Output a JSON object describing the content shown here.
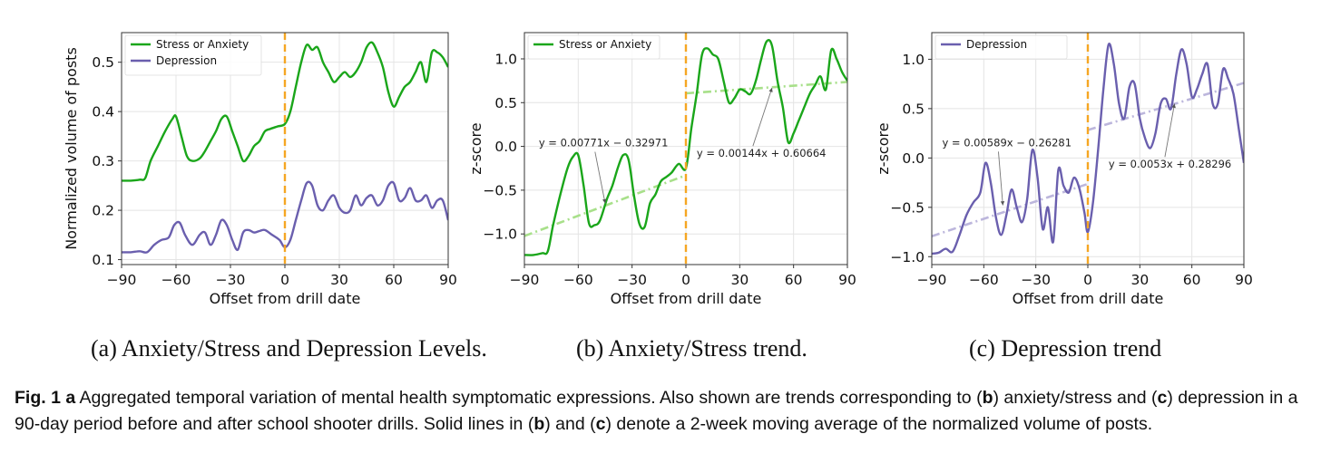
{
  "subcaptions": {
    "a": "(a) Anxiety/Stress and Depression Levels.",
    "b": "(b) Anxiety/Stress trend.",
    "c": "(c) Depression trend"
  },
  "caption": {
    "fig_label": "Fig. 1",
    "a": "a",
    "text1": " Aggregated temporal variation of mental health symptomatic expressions. Also shown are trends corresponding to (",
    "b": "b",
    "text2": ") anxiety/stress and (",
    "c": "c",
    "text3": ") depression in a 90-day period before and after school shooter drills. Solid lines in (",
    "b2": "b",
    "text4": ") and (",
    "c2": "c",
    "text5": ") denote a 2-week moving average of the normalized volume of posts."
  },
  "colors": {
    "green": "#1aa61a",
    "purple": "#6a5fae",
    "lightgreen": "#a8e08a",
    "lightpurple": "#bcb6dc",
    "drill": "#f5a623"
  },
  "chart_data": [
    {
      "type": "line",
      "xlabel": "Offset from drill date",
      "ylabel": "Normalized volume of posts",
      "xlim": [
        -90,
        90
      ],
      "ylim": [
        0.09,
        0.56
      ],
      "xticks": [
        -90,
        -60,
        -30,
        0,
        30,
        60,
        90
      ],
      "xtick_labels": [
        "−90",
        "−60",
        "−30",
        "0",
        "30",
        "60",
        "90"
      ],
      "yticks": [
        0.1,
        0.2,
        0.3,
        0.4,
        0.5
      ],
      "ytick_labels": [
        "0.1",
        "0.2",
        "0.3",
        "0.4",
        "0.5"
      ],
      "grid": true,
      "legend": "top-left",
      "vline_x": 0,
      "series": [
        {
          "name": "Stress or Anxiety",
          "color": "#1aa61a",
          "x": [
            -90,
            -85,
            -80,
            -77,
            -74,
            -70,
            -66,
            -62,
            -60,
            -57,
            -54,
            -51,
            -47,
            -44,
            -41,
            -38,
            -35,
            -32,
            -29,
            -26,
            -23,
            -20,
            -17,
            -14,
            -11,
            -8,
            -4,
            0,
            3,
            6,
            9,
            12,
            15,
            18,
            21,
            24,
            27,
            30,
            33,
            36,
            39,
            42,
            45,
            48,
            51,
            54,
            57,
            60,
            63,
            66,
            69,
            72,
            75,
            78,
            81,
            84,
            87,
            90
          ],
          "y": [
            0.26,
            0.26,
            0.262,
            0.265,
            0.3,
            0.33,
            0.36,
            0.385,
            0.39,
            0.35,
            0.31,
            0.3,
            0.305,
            0.32,
            0.34,
            0.36,
            0.385,
            0.39,
            0.36,
            0.33,
            0.3,
            0.31,
            0.33,
            0.34,
            0.36,
            0.365,
            0.37,
            0.375,
            0.4,
            0.45,
            0.5,
            0.535,
            0.525,
            0.53,
            0.5,
            0.48,
            0.46,
            0.47,
            0.48,
            0.47,
            0.48,
            0.5,
            0.53,
            0.54,
            0.52,
            0.49,
            0.44,
            0.41,
            0.43,
            0.45,
            0.46,
            0.48,
            0.5,
            0.46,
            0.52,
            0.52,
            0.51,
            0.49
          ]
        },
        {
          "name": "Depression",
          "color": "#6a5fae",
          "x": [
            -90,
            -85,
            -80,
            -76,
            -72,
            -68,
            -64,
            -61,
            -58,
            -55,
            -51,
            -47,
            -44,
            -41,
            -38,
            -35,
            -32,
            -29,
            -26,
            -23,
            -20,
            -17,
            -14,
            -11,
            -7,
            -3,
            0,
            3,
            6,
            9,
            12,
            15,
            18,
            21,
            24,
            27,
            30,
            33,
            36,
            39,
            42,
            45,
            48,
            51,
            54,
            57,
            60,
            63,
            66,
            69,
            72,
            75,
            78,
            81,
            84,
            87,
            90
          ],
          "y": [
            0.115,
            0.115,
            0.117,
            0.115,
            0.13,
            0.14,
            0.145,
            0.17,
            0.175,
            0.15,
            0.13,
            0.15,
            0.155,
            0.13,
            0.15,
            0.18,
            0.17,
            0.14,
            0.12,
            0.155,
            0.16,
            0.155,
            0.158,
            0.16,
            0.15,
            0.14,
            0.125,
            0.14,
            0.18,
            0.22,
            0.255,
            0.25,
            0.21,
            0.2,
            0.22,
            0.23,
            0.205,
            0.195,
            0.2,
            0.23,
            0.21,
            0.225,
            0.23,
            0.21,
            0.22,
            0.25,
            0.255,
            0.22,
            0.225,
            0.245,
            0.22,
            0.22,
            0.23,
            0.205,
            0.22,
            0.22,
            0.18
          ]
        }
      ]
    },
    {
      "type": "line",
      "xlabel": "Offset from drill date",
      "ylabel": "z-score",
      "xlim": [
        -90,
        90
      ],
      "ylim": [
        -1.35,
        1.3
      ],
      "xticks": [
        -90,
        -60,
        -30,
        0,
        30,
        60,
        90
      ],
      "xtick_labels": [
        "−90",
        "−60",
        "−30",
        "0",
        "30",
        "60",
        "90"
      ],
      "yticks": [
        -1.0,
        -0.5,
        0.0,
        0.5,
        1.0
      ],
      "ytick_labels": [
        "−1.0",
        "−0.5",
        "0.0",
        "0.5",
        "1.0"
      ],
      "grid": true,
      "legend": "top-left",
      "vline_x": 0,
      "series": [
        {
          "name": "Stress or Anxiety",
          "color": "#1aa61a",
          "x": [
            -90,
            -85,
            -80,
            -77,
            -74,
            -70,
            -66,
            -63,
            -60,
            -57,
            -54,
            -51,
            -48,
            -44,
            -41,
            -38,
            -35,
            -32,
            -29,
            -26,
            -23,
            -20,
            -17,
            -14,
            -11,
            -8,
            -4,
            0,
            3,
            6,
            9,
            12,
            15,
            18,
            21,
            24,
            27,
            30,
            33,
            36,
            39,
            42,
            45,
            48,
            51,
            54,
            57,
            60,
            63,
            66,
            69,
            72,
            75,
            78,
            81,
            84,
            87,
            90
          ],
          "y": [
            -1.24,
            -1.24,
            -1.22,
            -1.2,
            -0.9,
            -0.55,
            -0.25,
            -0.12,
            -0.1,
            -0.45,
            -0.88,
            -0.9,
            -0.85,
            -0.6,
            -0.45,
            -0.25,
            -0.1,
            -0.15,
            -0.55,
            -0.88,
            -0.92,
            -0.65,
            -0.55,
            -0.4,
            -0.35,
            -0.3,
            -0.2,
            -0.25,
            0.2,
            0.6,
            1.05,
            1.12,
            1.05,
            1.0,
            0.75,
            0.5,
            0.55,
            0.65,
            0.63,
            0.6,
            0.75,
            1.0,
            1.2,
            1.15,
            0.75,
            0.45,
            0.05,
            0.15,
            0.3,
            0.45,
            0.6,
            0.7,
            0.8,
            0.65,
            1.1,
            1.0,
            0.85,
            0.75
          ]
        }
      ],
      "trend_before": {
        "x": [
          -90,
          0
        ],
        "y": [
          -1.0236,
          -0.3297
        ],
        "color": "#a8e08a"
      },
      "trend_after": {
        "x": [
          0,
          90
        ],
        "y": [
          0.6066,
          0.7363
        ],
        "color": "#a8e08a"
      },
      "annotations": [
        {
          "text": "y = 0.00771x − 0.32971",
          "label_x": -82,
          "label_y": 0.0,
          "arrow_x": -45,
          "arrow_y": -0.65
        },
        {
          "text": "y = 0.00144x + 0.60664",
          "label_x": 6,
          "label_y": -0.12,
          "arrow_x": 48,
          "arrow_y": 0.67
        }
      ]
    },
    {
      "type": "line",
      "xlabel": "Offset from drill date",
      "ylabel": "z-score",
      "xlim": [
        -90,
        90
      ],
      "ylim": [
        -1.08,
        1.27
      ],
      "xticks": [
        -90,
        -60,
        -30,
        0,
        30,
        60,
        90
      ],
      "xtick_labels": [
        "−90",
        "−60",
        "−30",
        "0",
        "30",
        "60",
        "90"
      ],
      "yticks": [
        -1.0,
        -0.5,
        0.0,
        0.5,
        1.0
      ],
      "ytick_labels": [
        "−1.0",
        "−0.5",
        "0.0",
        "0.5",
        "1.0"
      ],
      "grid": true,
      "legend": "top-left",
      "vline_x": 0,
      "series": [
        {
          "name": "Depression",
          "color": "#6a5fae",
          "x": [
            -90,
            -86,
            -82,
            -78,
            -74,
            -70,
            -66,
            -62,
            -59,
            -56,
            -53,
            -50,
            -47,
            -44,
            -41,
            -38,
            -35,
            -32,
            -29,
            -26,
            -23,
            -20,
            -17,
            -14,
            -11,
            -8,
            -5,
            -2,
            0,
            3,
            6,
            9,
            12,
            15,
            18,
            21,
            24,
            27,
            30,
            33,
            36,
            39,
            42,
            45,
            48,
            51,
            54,
            57,
            60,
            63,
            66,
            69,
            72,
            75,
            78,
            81,
            84,
            87,
            90
          ],
          "y": [
            -0.97,
            -0.96,
            -0.92,
            -0.95,
            -0.78,
            -0.58,
            -0.45,
            -0.35,
            -0.05,
            -0.25,
            -0.6,
            -0.78,
            -0.58,
            -0.32,
            -0.5,
            -0.65,
            -0.42,
            0.08,
            -0.2,
            -0.72,
            -0.5,
            -0.85,
            -0.12,
            -0.28,
            -0.35,
            -0.2,
            -0.3,
            -0.55,
            -0.75,
            -0.45,
            0.1,
            0.7,
            1.15,
            0.95,
            0.55,
            0.4,
            0.72,
            0.75,
            0.4,
            0.2,
            0.1,
            0.25,
            0.55,
            0.6,
            0.5,
            0.85,
            1.1,
            0.95,
            0.62,
            0.7,
            0.85,
            0.95,
            0.55,
            0.55,
            0.9,
            0.8,
            0.65,
            0.3,
            -0.05
          ]
        }
      ],
      "trend_before": {
        "x": [
          -90,
          0
        ],
        "y": [
          -0.7929,
          -0.2628
        ],
        "color": "#bcb6dc"
      },
      "trend_after": {
        "x": [
          0,
          90
        ],
        "y": [
          0.283,
          0.76
        ],
        "color": "#bcb6dc"
      },
      "annotations": [
        {
          "text": "y = 0.00589x − 0.26281",
          "label_x": -84,
          "label_y": 0.12,
          "arrow_x": -49,
          "arrow_y": -0.48
        },
        {
          "text": "y = 0.0053x + 0.28296",
          "label_x": 12,
          "label_y": -0.1,
          "arrow_x": 50,
          "arrow_y": 0.55
        }
      ]
    }
  ]
}
